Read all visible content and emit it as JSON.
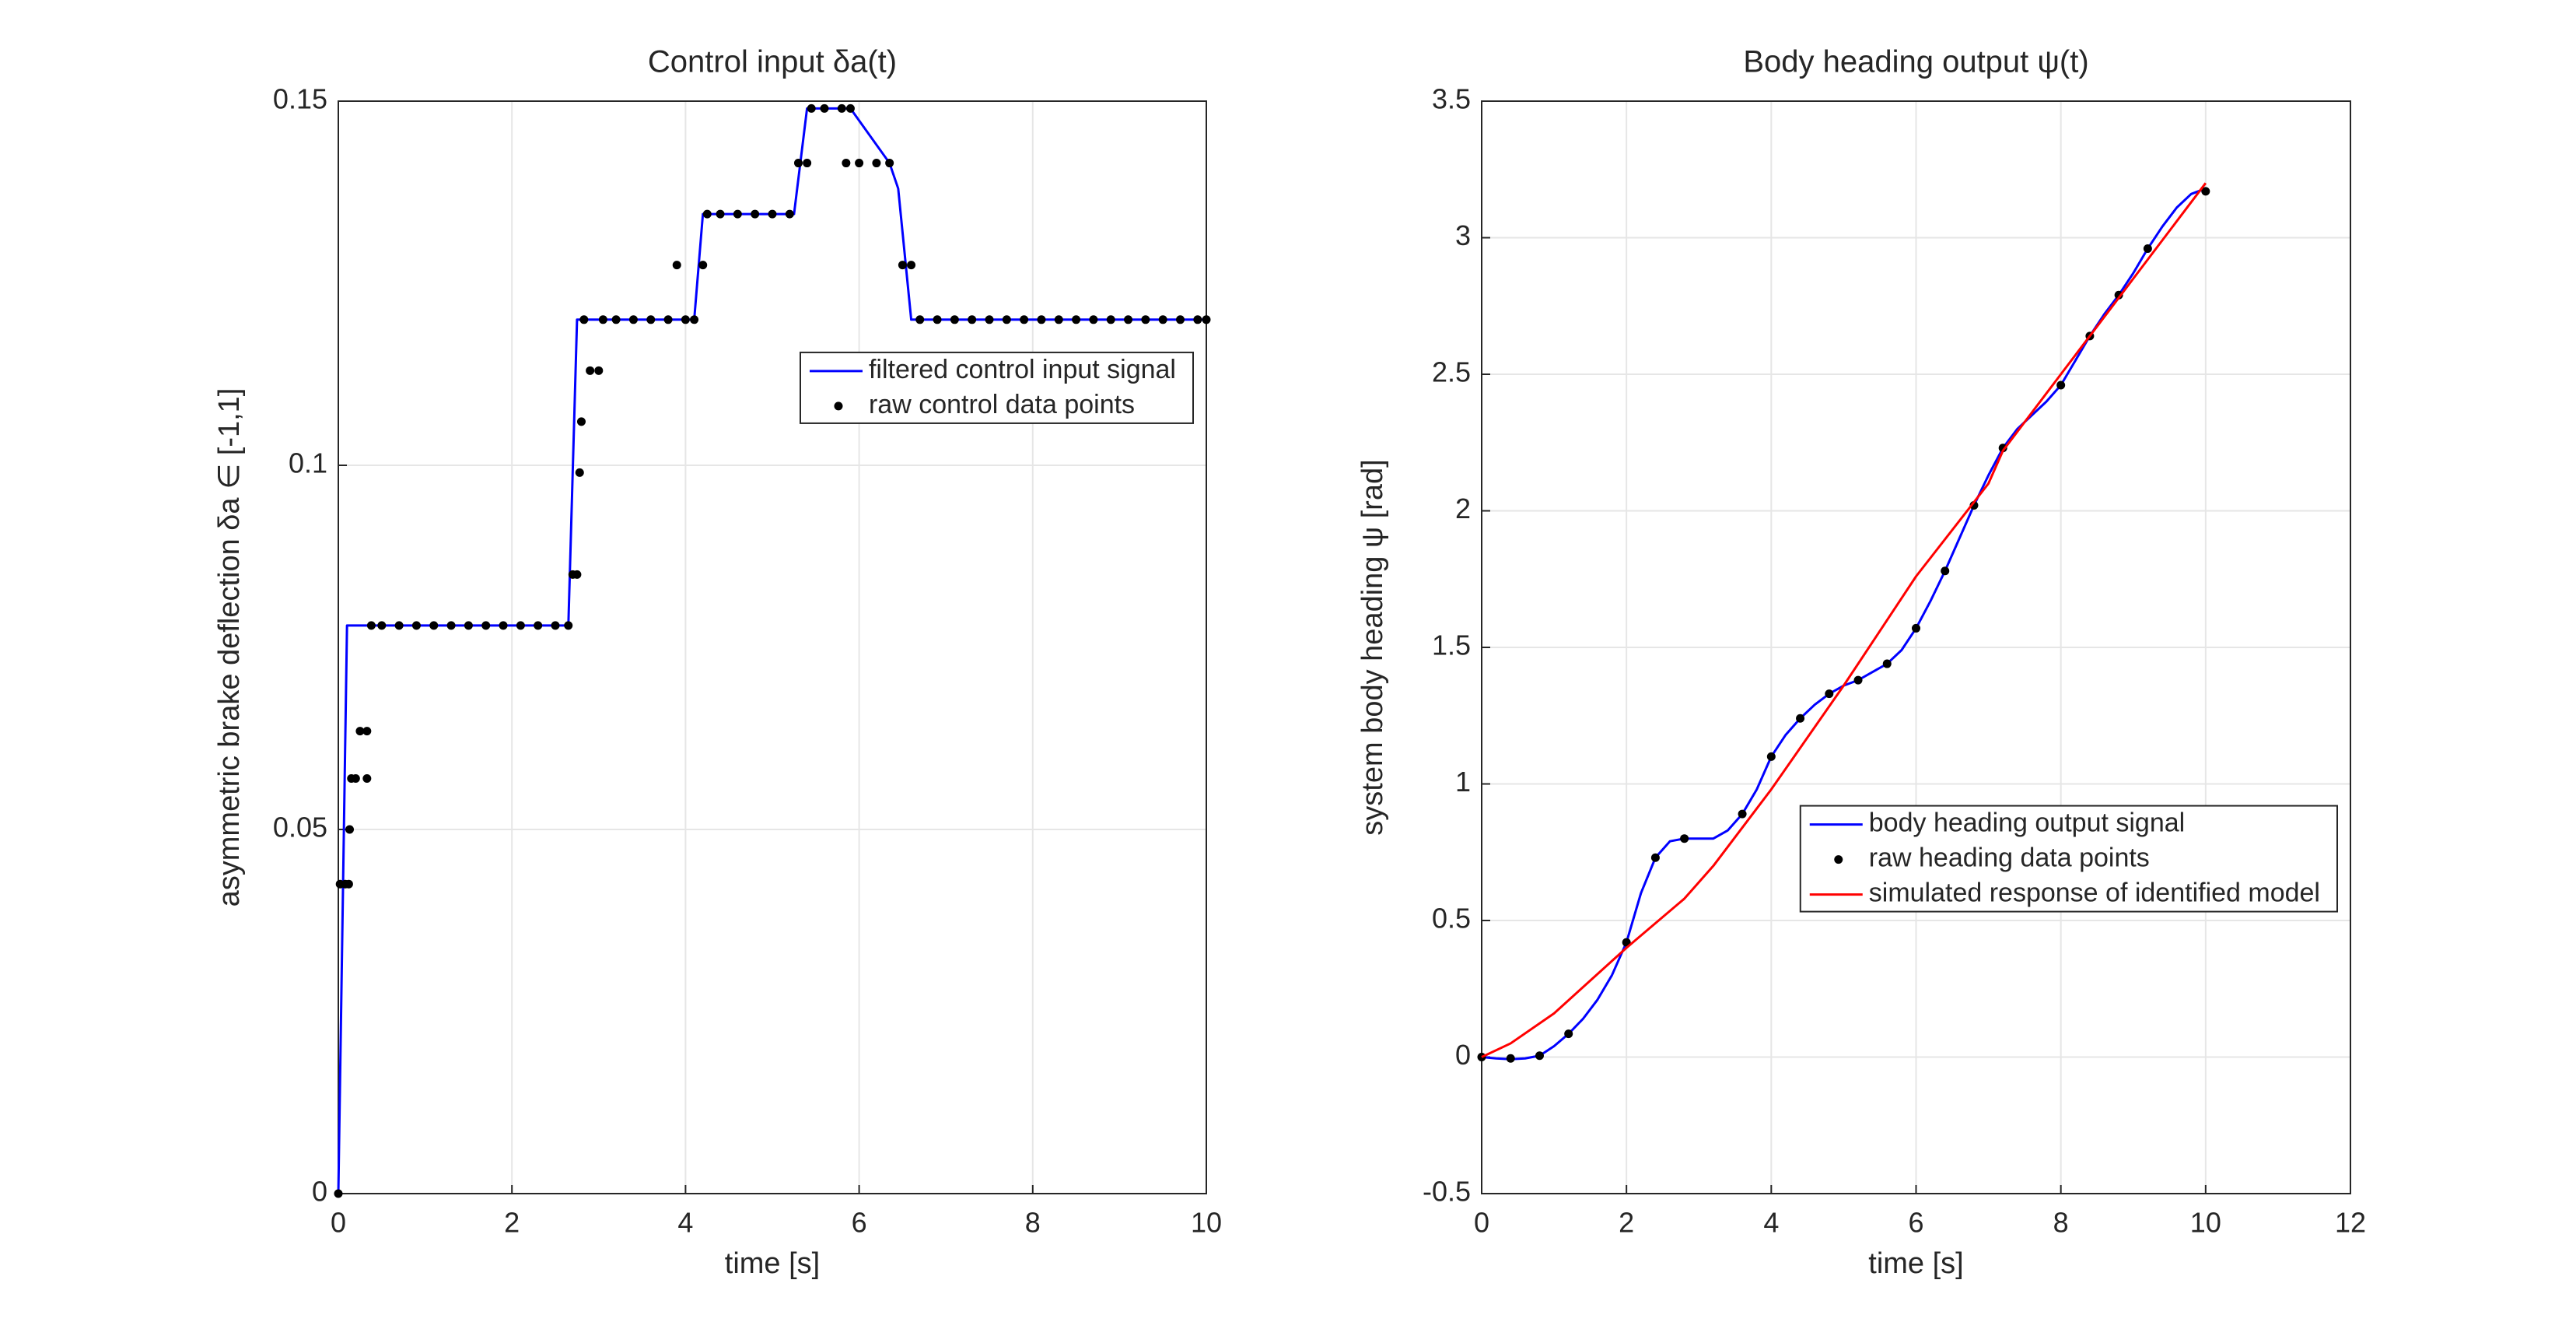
{
  "chart_data": [
    {
      "type": "line",
      "title": "Control input δa(t)",
      "xlabel": "time [s]",
      "ylabel": "asymmetric brake deflection δa ∈ [-1,1]",
      "xlim": [
        0,
        10
      ],
      "xticks": [
        0,
        2,
        4,
        6,
        8,
        10
      ],
      "ylim": [
        0,
        0.15
      ],
      "yticks": [
        0,
        0.05,
        0.1,
        0.15
      ],
      "grid": true,
      "legend": "northeast",
      "series": [
        {
          "name": "filtered control input signal",
          "color": "#0000ff",
          "style": "line",
          "x": [
            0,
            0.1,
            0.35,
            2.65,
            2.75,
            3.0,
            4.1,
            4.2,
            5.25,
            5.4,
            5.9,
            6.35,
            6.45,
            6.6,
            10
          ],
          "values": [
            0,
            0.078,
            0.078,
            0.078,
            0.12,
            0.12,
            0.12,
            0.1345,
            0.1345,
            0.149,
            0.149,
            0.1415,
            0.138,
            0.12,
            0.12
          ]
        },
        {
          "name": "raw control data points",
          "color": "#000000",
          "style": "markers",
          "x": [
            0,
            0.02,
            0.08,
            0.12,
            0.13,
            0.15,
            0.2,
            0.25,
            0.33,
            0.33,
            0.38,
            0.5,
            0.7,
            0.9,
            1.1,
            1.3,
            1.5,
            1.7,
            1.9,
            2.1,
            2.3,
            2.5,
            2.65,
            2.7,
            2.75,
            2.78,
            2.8,
            2.83,
            2.9,
            3.0,
            3.05,
            3.2,
            3.4,
            3.6,
            3.8,
            3.9,
            4.0,
            4.1,
            4.2,
            4.25,
            4.4,
            4.6,
            4.8,
            5.0,
            5.2,
            5.3,
            5.4,
            5.45,
            5.6,
            5.8,
            5.85,
            5.9,
            6.0,
            6.2,
            6.35,
            6.5,
            6.6,
            6.7,
            6.9,
            7.1,
            7.3,
            7.5,
            7.7,
            7.9,
            8.1,
            8.3,
            8.5,
            8.7,
            8.9,
            9.1,
            9.3,
            9.5,
            9.7,
            9.9,
            10.0
          ],
          "values": [
            0,
            0.0425,
            0.0425,
            0.0425,
            0.05,
            0.057,
            0.057,
            0.0635,
            0.0635,
            0.057,
            0.078,
            0.078,
            0.078,
            0.078,
            0.078,
            0.078,
            0.078,
            0.078,
            0.078,
            0.078,
            0.078,
            0.078,
            0.078,
            0.085,
            0.085,
            0.099,
            0.106,
            0.12,
            0.113,
            0.113,
            0.12,
            0.12,
            0.12,
            0.12,
            0.12,
            0.1275,
            0.12,
            0.12,
            0.1275,
            0.1345,
            0.1345,
            0.1345,
            0.1345,
            0.1345,
            0.1345,
            0.1415,
            0.1415,
            0.149,
            0.149,
            0.149,
            0.1415,
            0.149,
            0.1415,
            0.1415,
            0.1415,
            0.1275,
            0.1275,
            0.12,
            0.12,
            0.12,
            0.12,
            0.12,
            0.12,
            0.12,
            0.12,
            0.12,
            0.12,
            0.12,
            0.12,
            0.12,
            0.12,
            0.12,
            0.12,
            0.12,
            0.12
          ]
        }
      ]
    },
    {
      "type": "line",
      "title": "Body heading output ψ(t)",
      "xlabel": "time [s]",
      "ylabel": "system body heading ψ [rad]",
      "xlim": [
        0,
        12
      ],
      "xticks": [
        0,
        2,
        4,
        6,
        8,
        10,
        12
      ],
      "ylim": [
        -0.5,
        3.5
      ],
      "yticks": [
        -0.5,
        0,
        0.5,
        1,
        1.5,
        2,
        2.5,
        3,
        3.5
      ],
      "grid": true,
      "legend": "southeast",
      "series": [
        {
          "name": "body heading output signal",
          "color": "#0000ff",
          "style": "line",
          "x": [
            0,
            0.2,
            0.4,
            0.6,
            0.8,
            1.0,
            1.2,
            1.4,
            1.6,
            1.8,
            2.0,
            2.2,
            2.4,
            2.6,
            2.8,
            3.0,
            3.2,
            3.4,
            3.6,
            3.8,
            4.0,
            4.2,
            4.4,
            4.6,
            4.8,
            5.0,
            5.2,
            5.4,
            5.6,
            5.8,
            6.0,
            6.2,
            6.4,
            6.6,
            6.8,
            7.0,
            7.2,
            7.4,
            7.6,
            7.8,
            8.0,
            8.2,
            8.4,
            8.6,
            8.8,
            9.0,
            9.2,
            9.4,
            9.6,
            9.8,
            10.0
          ],
          "values": [
            0,
            -0.005,
            -0.008,
            -0.005,
            0.005,
            0.04,
            0.085,
            0.14,
            0.21,
            0.3,
            0.42,
            0.6,
            0.73,
            0.79,
            0.8,
            0.8,
            0.8,
            0.83,
            0.89,
            0.98,
            1.1,
            1.18,
            1.24,
            1.29,
            1.33,
            1.36,
            1.38,
            1.41,
            1.44,
            1.49,
            1.57,
            1.67,
            1.78,
            1.9,
            2.02,
            2.13,
            2.23,
            2.3,
            2.35,
            2.4,
            2.46,
            2.55,
            2.64,
            2.72,
            2.79,
            2.87,
            2.96,
            3.04,
            3.11,
            3.16,
            3.18
          ]
        },
        {
          "name": "raw heading data points",
          "color": "#000000",
          "style": "markers",
          "x": [
            0,
            0.4,
            0.8,
            1.2,
            2.0,
            2.4,
            2.8,
            3.6,
            4.0,
            4.4,
            4.8,
            5.2,
            5.6,
            6.0,
            6.4,
            6.8,
            7.2,
            8.0,
            8.4,
            8.8,
            9.2,
            10.0
          ],
          "values": [
            0,
            -0.005,
            0.005,
            0.085,
            0.42,
            0.73,
            0.8,
            0.89,
            1.1,
            1.24,
            1.33,
            1.38,
            1.44,
            1.57,
            1.78,
            2.02,
            2.23,
            2.46,
            2.64,
            2.79,
            2.96,
            3.17
          ]
        },
        {
          "name": "simulated response of identified model",
          "color": "#ff0000",
          "style": "line",
          "x": [
            0,
            0.4,
            1.0,
            2.0,
            2.8,
            3.2,
            4.0,
            5.0,
            6.0,
            7.0,
            7.2,
            8.0,
            9.0,
            10.0
          ],
          "values": [
            0,
            0.05,
            0.16,
            0.4,
            0.58,
            0.7,
            0.98,
            1.36,
            1.76,
            2.1,
            2.22,
            2.5,
            2.85,
            3.2
          ]
        }
      ]
    }
  ]
}
